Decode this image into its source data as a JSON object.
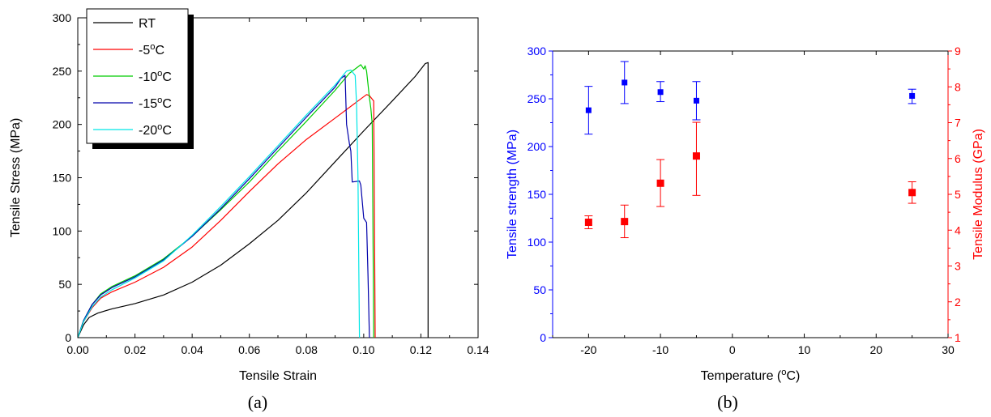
{
  "figure": {
    "panel_a_label": "(a)",
    "panel_b_label": "(b)"
  },
  "chart_data": [
    {
      "type": "line",
      "panel": "(a)",
      "xlabel": "Tensile Strain",
      "ylabel": "Tensile Stress (MPa)",
      "xlim": [
        0,
        0.14
      ],
      "ylim": [
        0,
        300
      ],
      "x_ticks": [
        0.0,
        0.02,
        0.04,
        0.06,
        0.08,
        0.1,
        0.12,
        0.14
      ],
      "x_tick_labels": [
        "0.00",
        "0.02",
        "0.04",
        "0.06",
        "0.08",
        "0.10",
        "0.12",
        "0.14"
      ],
      "y_ticks": [
        0,
        50,
        100,
        150,
        200,
        250,
        300
      ],
      "y_tick_labels": [
        "0",
        "50",
        "100",
        "150",
        "200",
        "250",
        "300"
      ],
      "grid": false,
      "legend_position": "top-left",
      "series": [
        {
          "name": "RT",
          "color": "#000000",
          "points": [
            [
              0,
              0
            ],
            [
              0.002,
              12
            ],
            [
              0.004,
              19
            ],
            [
              0.007,
              23
            ],
            [
              0.012,
              27
            ],
            [
              0.02,
              32
            ],
            [
              0.03,
              40
            ],
            [
              0.04,
              52
            ],
            [
              0.05,
              68
            ],
            [
              0.06,
              88
            ],
            [
              0.07,
              110
            ],
            [
              0.08,
              136
            ],
            [
              0.09,
              165
            ],
            [
              0.1,
              194
            ],
            [
              0.11,
              222
            ],
            [
              0.118,
              245
            ],
            [
              0.1215,
              257
            ],
            [
              0.1225,
              258
            ],
            [
              0.1225,
              0
            ]
          ]
        },
        {
          "name": "-5°C",
          "color": "#ff0000",
          "points": [
            [
              0,
              0
            ],
            [
              0.002,
              15
            ],
            [
              0.005,
              28
            ],
            [
              0.008,
              37
            ],
            [
              0.012,
              43
            ],
            [
              0.02,
              52
            ],
            [
              0.03,
              66
            ],
            [
              0.04,
              85
            ],
            [
              0.05,
              110
            ],
            [
              0.06,
              137
            ],
            [
              0.07,
              163
            ],
            [
              0.08,
              186
            ],
            [
              0.09,
              206
            ],
            [
              0.098,
              222
            ],
            [
              0.101,
              228
            ],
            [
              0.102,
              227
            ],
            [
              0.1035,
              222
            ],
            [
              0.104,
              0
            ]
          ]
        },
        {
          "name": "-10°C",
          "color": "#00cc00",
          "points": [
            [
              0,
              0
            ],
            [
              0.002,
              16
            ],
            [
              0.005,
              31
            ],
            [
              0.008,
              41
            ],
            [
              0.012,
              48
            ],
            [
              0.02,
              58
            ],
            [
              0.03,
              74
            ],
            [
              0.04,
              95
            ],
            [
              0.05,
              120
            ],
            [
              0.06,
              146
            ],
            [
              0.07,
              175
            ],
            [
              0.08,
              203
            ],
            [
              0.09,
              232
            ],
            [
              0.095,
              248
            ],
            [
              0.0975,
              253
            ],
            [
              0.099,
              256
            ],
            [
              0.1,
              252
            ],
            [
              0.1005,
              255
            ],
            [
              0.101,
              250
            ],
            [
              0.1015,
              238
            ],
            [
              0.102,
              225
            ],
            [
              0.1025,
              215
            ],
            [
              0.103,
              200
            ],
            [
              0.1035,
              0
            ]
          ]
        },
        {
          "name": "-15°C",
          "color": "#0000aa",
          "points": [
            [
              0,
              0
            ],
            [
              0.002,
              16
            ],
            [
              0.005,
              31
            ],
            [
              0.008,
              40
            ],
            [
              0.012,
              47
            ],
            [
              0.02,
              57
            ],
            [
              0.03,
              73
            ],
            [
              0.04,
              95
            ],
            [
              0.05,
              121
            ],
            [
              0.06,
              149
            ],
            [
              0.07,
              178
            ],
            [
              0.08,
              207
            ],
            [
              0.09,
              235
            ],
            [
              0.092,
              243
            ],
            [
              0.0935,
              246
            ],
            [
              0.094,
              200
            ],
            [
              0.095,
              182
            ],
            [
              0.0955,
              175
            ],
            [
              0.096,
              146
            ],
            [
              0.0985,
              147
            ],
            [
              0.099,
              143
            ],
            [
              0.1,
              112
            ],
            [
              0.101,
              108
            ],
            [
              0.1015,
              60
            ],
            [
              0.102,
              0
            ]
          ]
        },
        {
          "name": "-20°C",
          "color": "#00e6e6",
          "points": [
            [
              0,
              0
            ],
            [
              0.002,
              15
            ],
            [
              0.005,
              29
            ],
            [
              0.008,
              38
            ],
            [
              0.012,
              45
            ],
            [
              0.02,
              56
            ],
            [
              0.03,
              72
            ],
            [
              0.04,
              96
            ],
            [
              0.05,
              123
            ],
            [
              0.06,
              151
            ],
            [
              0.07,
              180
            ],
            [
              0.08,
              209
            ],
            [
              0.09,
              237
            ],
            [
              0.094,
              250
            ],
            [
              0.0955,
              251
            ],
            [
              0.097,
              246
            ],
            [
              0.0975,
              220
            ],
            [
              0.098,
              150
            ],
            [
              0.0985,
              0
            ]
          ]
        }
      ]
    },
    {
      "type": "scatter",
      "panel": "(b)",
      "xlabel": "Temperature (°C)",
      "ylabel_left": "Tensile strength (MPa)",
      "ylabel_right": "Tensile Modulus (GPa)",
      "xlim": [
        -25,
        30
      ],
      "ylim_left": [
        0,
        300
      ],
      "ylim_right": [
        1,
        9
      ],
      "x_ticks": [
        -20,
        -10,
        0,
        10,
        20,
        30
      ],
      "x_tick_labels": [
        "-20",
        "-10",
        "0",
        "10",
        "20",
        "30"
      ],
      "y_left_ticks": [
        0,
        50,
        100,
        150,
        200,
        250,
        300
      ],
      "y_left_tick_labels": [
        "0",
        "50",
        "100",
        "150",
        "200",
        "250",
        "300"
      ],
      "y_right_ticks": [
        1,
        2,
        3,
        4,
        5,
        6,
        7,
        8,
        9
      ],
      "y_right_tick_labels": [
        "1",
        "2",
        "3",
        "4",
        "5",
        "6",
        "7",
        "8",
        "9"
      ],
      "grid": false,
      "left_color": "#0000ff",
      "right_color": "#ff0000",
      "series": [
        {
          "axis": "left",
          "color": "#0000ff",
          "x": [
            -20,
            -15,
            -10,
            -5,
            25
          ],
          "y": [
            238,
            267,
            257,
            248,
            253
          ],
          "err_low": [
            25,
            22,
            10,
            20,
            8
          ],
          "err_high": [
            25,
            22,
            11,
            20,
            7
          ]
        },
        {
          "axis": "right",
          "color": "#ff0000",
          "x": [
            -20,
            -15,
            -10,
            -5,
            25
          ],
          "y": [
            4.22,
            4.24,
            5.31,
            6.07,
            5.05
          ],
          "err_low": [
            0.18,
            0.45,
            0.65,
            1.1,
            0.3
          ],
          "err_high": [
            0.18,
            0.46,
            0.66,
            0.94,
            0.3
          ]
        }
      ]
    }
  ]
}
